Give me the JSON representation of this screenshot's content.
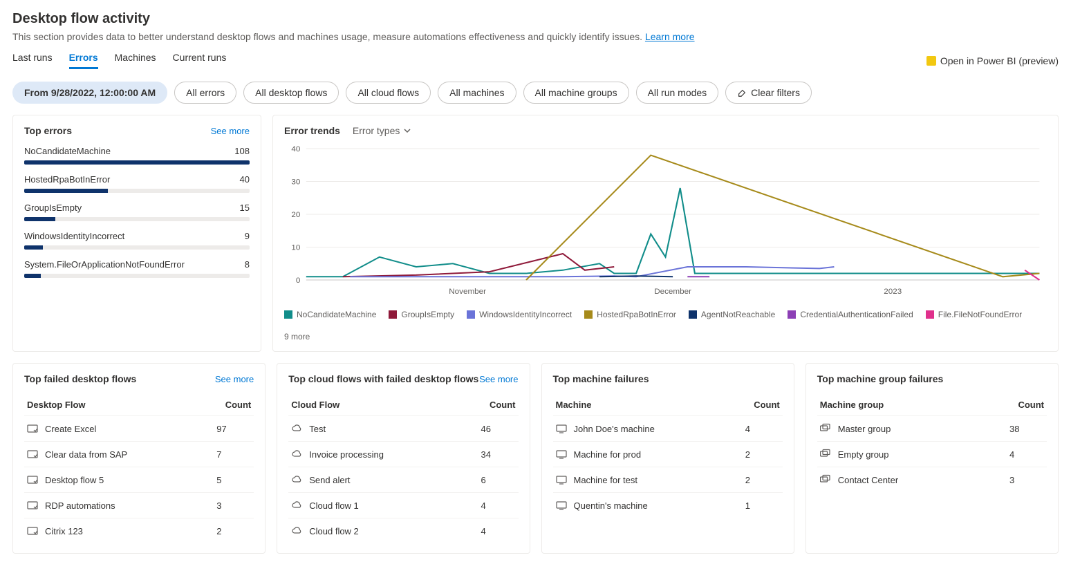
{
  "header": {
    "title": "Desktop flow activity",
    "subtitle": "This section provides data to better understand desktop flows and machines usage, measure automations effectiveness and quickly identify issues.",
    "learn_more": "Learn more",
    "open_bi": "Open in Power BI (preview)"
  },
  "tabs": [
    "Last runs",
    "Errors",
    "Machines",
    "Current runs"
  ],
  "active_tab_index": 1,
  "filters": {
    "date": "From 9/28/2022, 12:00:00 AM",
    "pills": [
      "All errors",
      "All desktop flows",
      "All cloud flows",
      "All machines",
      "All machine groups",
      "All run modes"
    ],
    "clear": "Clear filters"
  },
  "top_errors": {
    "title": "Top errors",
    "see_more": "See more",
    "max": 108,
    "bar_color": "#0f336b",
    "track_color": "#edebe9",
    "items": [
      {
        "label": "NoCandidateMachine",
        "value": 108
      },
      {
        "label": "HostedRpaBotInError",
        "value": 40
      },
      {
        "label": "GroupIsEmpty",
        "value": 15
      },
      {
        "label": "WindowsIdentityIncorrect",
        "value": 9
      },
      {
        "label": "System.FileOrApplicationNotFoundError",
        "value": 8
      }
    ]
  },
  "error_trends": {
    "title": "Error trends",
    "dropdown": "Error types",
    "ymax": 40,
    "ytick_step": 10,
    "xlabels": [
      "November",
      "December",
      "2023"
    ],
    "background": "#ffffff",
    "grid_color": "#edebe9",
    "axis_color": "#605e5c",
    "more_label": "9 more",
    "series": [
      {
        "name": "NoCandidateMachine",
        "color": "#118d8a",
        "points": [
          [
            0,
            1
          ],
          [
            5,
            1
          ],
          [
            10,
            7
          ],
          [
            15,
            4
          ],
          [
            20,
            5
          ],
          [
            25,
            2
          ],
          [
            30,
            2
          ],
          [
            35,
            3
          ],
          [
            40,
            5
          ],
          [
            42,
            2
          ],
          [
            45,
            2
          ],
          [
            47,
            14
          ],
          [
            49,
            7
          ],
          [
            51,
            28
          ],
          [
            53,
            2
          ],
          [
            60,
            2
          ],
          [
            80,
            2
          ],
          [
            98,
            2
          ],
          [
            100,
            2
          ]
        ]
      },
      {
        "name": "GroupIsEmpty",
        "color": "#8f1a3a",
        "points": [
          [
            5,
            1
          ],
          [
            15,
            1.5
          ],
          [
            25,
            2.5
          ],
          [
            35,
            8
          ],
          [
            38,
            3
          ],
          [
            42,
            4
          ]
        ]
      },
      {
        "name": "WindowsIdentityIncorrect",
        "color": "#6a73d8",
        "points": [
          [
            6,
            1
          ],
          [
            20,
            1
          ],
          [
            35,
            1
          ],
          [
            42,
            1.2
          ],
          [
            45,
            1
          ],
          [
            52,
            4
          ],
          [
            60,
            4
          ],
          [
            70,
            3.5
          ],
          [
            72,
            4
          ]
        ]
      },
      {
        "name": "HostedRpaBotInError",
        "color": "#a68a1a",
        "points": [
          [
            30,
            0
          ],
          [
            47,
            38
          ],
          [
            95,
            1
          ],
          [
            100,
            2
          ]
        ]
      },
      {
        "name": "AgentNotReachable",
        "color": "#0f336b",
        "points": [
          [
            40,
            1
          ],
          [
            45,
            1.2
          ],
          [
            50,
            1
          ]
        ]
      },
      {
        "name": "CredentialAuthenticationFailed",
        "color": "#8c3fb5",
        "points": [
          [
            52,
            1
          ],
          [
            55,
            1
          ]
        ]
      },
      {
        "name": "File.FileNotFoundError",
        "color": "#e0308c",
        "points": [
          [
            98,
            3
          ],
          [
            100,
            0
          ]
        ]
      }
    ]
  },
  "bottom": [
    {
      "title": "Top failed desktop flows",
      "see_more": "See more",
      "col1": "Desktop Flow",
      "col2": "Count",
      "icon": "flow",
      "rows": [
        {
          "name": "Create Excel",
          "count": 97
        },
        {
          "name": "Clear data from SAP",
          "count": 7
        },
        {
          "name": "Desktop flow 5",
          "count": 5
        },
        {
          "name": "RDP automations",
          "count": 3
        },
        {
          "name": "Citrix 123",
          "count": 2
        }
      ]
    },
    {
      "title": "Top cloud flows with failed desktop flows",
      "see_more": "See more",
      "col1": "Cloud Flow",
      "col2": "Count",
      "icon": "cloud",
      "rows": [
        {
          "name": "Test",
          "count": 46
        },
        {
          "name": "Invoice processing",
          "count": 34
        },
        {
          "name": "Send alert",
          "count": 6
        },
        {
          "name": "Cloud flow 1",
          "count": 4
        },
        {
          "name": "Cloud flow 2",
          "count": 4
        }
      ]
    },
    {
      "title": "Top machine failures",
      "see_more": null,
      "col1": "Machine",
      "col2": "Count",
      "icon": "machine",
      "rows": [
        {
          "name": "John Doe's machine",
          "count": 4
        },
        {
          "name": "Machine for prod",
          "count": 2
        },
        {
          "name": "Machine for test",
          "count": 2
        },
        {
          "name": "Quentin's machine",
          "count": 1
        }
      ]
    },
    {
      "title": "Top machine group failures",
      "see_more": null,
      "col1": "Machine group",
      "col2": "Count",
      "icon": "group",
      "rows": [
        {
          "name": "Master group",
          "count": 38
        },
        {
          "name": "Empty group",
          "count": 4
        },
        {
          "name": "Contact Center",
          "count": 3
        }
      ]
    }
  ]
}
